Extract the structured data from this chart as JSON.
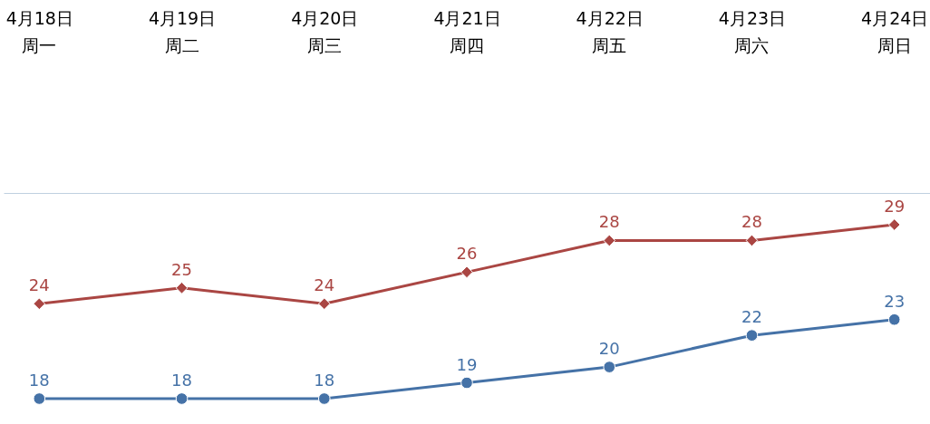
{
  "chart_data": {
    "type": "line",
    "categories": [
      "4月18日",
      "4月19日",
      "4月20日",
      "4月21日",
      "4月22日",
      "4月23日",
      "4月24日"
    ],
    "series": [
      {
        "color": "#aa4643",
        "marker": "diamond",
        "values": [
          24,
          25,
          24,
          26,
          28,
          28,
          29
        ]
      },
      {
        "color": "#4572a7",
        "marker": "circle",
        "values": [
          18,
          18,
          18,
          19,
          20,
          22,
          23
        ]
      }
    ],
    "tick_labels": "x",
    "data_labels": true,
    "annotations": [
      "周一",
      "周二",
      "周三",
      "周四",
      "周五",
      "周六",
      "周日"
    ]
  }
}
